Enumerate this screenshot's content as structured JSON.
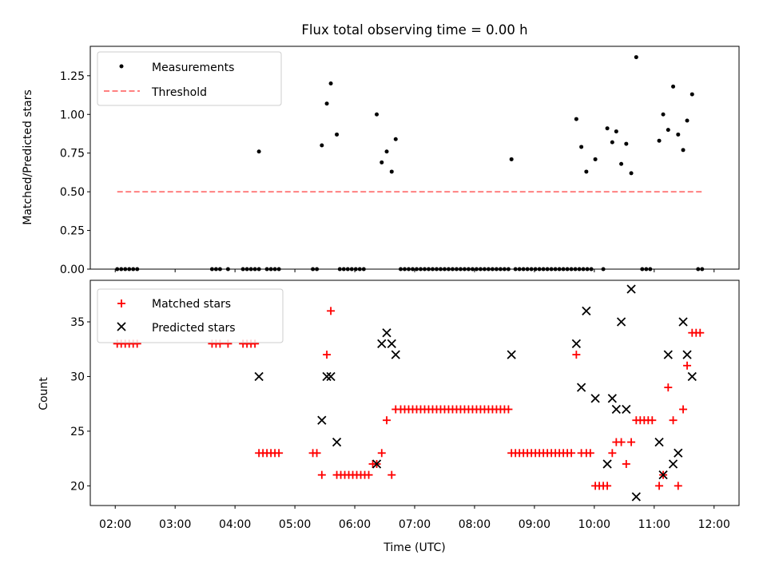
{
  "chart_data": [
    {
      "type": "scatter",
      "title": "Flux total observing time = 0.00 h",
      "ylabel": "Matched/Predicted stars",
      "xlim": [
        "01:35",
        "12:25"
      ],
      "ylim": [
        0,
        1.44
      ],
      "ytick_labels": [
        "0.00",
        "0.25",
        "0.50",
        "0.75",
        "1.00",
        "1.25"
      ],
      "yticks": [
        0,
        0.25,
        0.5,
        0.75,
        1.0,
        1.25
      ],
      "legend_position": "top-left",
      "grid": false,
      "series": [
        {
          "name": "Measurements",
          "marker": "dot",
          "color": "#000000",
          "points": [
            [
              "02:02",
              0
            ],
            [
              "02:06",
              0
            ],
            [
              "02:10",
              0
            ],
            [
              "02:14",
              0
            ],
            [
              "02:18",
              0
            ],
            [
              "02:22",
              0
            ],
            [
              "03:37",
              0
            ],
            [
              "03:41",
              0
            ],
            [
              "03:45",
              0
            ],
            [
              "03:53",
              0
            ],
            [
              "04:08",
              0
            ],
            [
              "04:12",
              0
            ],
            [
              "04:16",
              0
            ],
            [
              "04:20",
              0
            ],
            [
              "04:24",
              0
            ],
            [
              "04:32",
              0
            ],
            [
              "04:36",
              0
            ],
            [
              "04:40",
              0
            ],
            [
              "04:44",
              0
            ],
            [
              "05:18",
              0
            ],
            [
              "05:22",
              0
            ],
            [
              "05:45",
              0
            ],
            [
              "05:49",
              0
            ],
            [
              "05:53",
              0
            ],
            [
              "05:57",
              0
            ],
            [
              "06:01",
              0
            ],
            [
              "06:05",
              0
            ],
            [
              "06:09",
              0
            ],
            [
              "06:46",
              0
            ],
            [
              "06:50",
              0
            ],
            [
              "06:54",
              0
            ],
            [
              "06:58",
              0
            ],
            [
              "07:02",
              0
            ],
            [
              "07:06",
              0
            ],
            [
              "07:10",
              0
            ],
            [
              "07:14",
              0
            ],
            [
              "07:18",
              0
            ],
            [
              "07:22",
              0
            ],
            [
              "07:26",
              0
            ],
            [
              "07:30",
              0
            ],
            [
              "07:34",
              0
            ],
            [
              "07:38",
              0
            ],
            [
              "07:42",
              0
            ],
            [
              "07:46",
              0
            ],
            [
              "07:50",
              0
            ],
            [
              "07:54",
              0
            ],
            [
              "07:58",
              0
            ],
            [
              "08:02",
              0
            ],
            [
              "08:06",
              0
            ],
            [
              "08:10",
              0
            ],
            [
              "08:14",
              0
            ],
            [
              "08:18",
              0
            ],
            [
              "08:22",
              0
            ],
            [
              "08:26",
              0
            ],
            [
              "08:30",
              0
            ],
            [
              "08:34",
              0
            ],
            [
              "08:41",
              0
            ],
            [
              "08:45",
              0
            ],
            [
              "08:49",
              0
            ],
            [
              "08:53",
              0
            ],
            [
              "08:57",
              0
            ],
            [
              "09:01",
              0
            ],
            [
              "09:05",
              0
            ],
            [
              "09:09",
              0
            ],
            [
              "09:13",
              0
            ],
            [
              "09:17",
              0
            ],
            [
              "09:21",
              0
            ],
            [
              "09:25",
              0
            ],
            [
              "09:29",
              0
            ],
            [
              "09:33",
              0
            ],
            [
              "09:37",
              0
            ],
            [
              "09:41",
              0
            ],
            [
              "09:45",
              0
            ],
            [
              "09:49",
              0
            ],
            [
              "09:53",
              0
            ],
            [
              "09:57",
              0
            ],
            [
              "10:09",
              0
            ],
            [
              "10:48",
              0
            ],
            [
              "10:52",
              0
            ],
            [
              "10:56",
              0
            ],
            [
              "11:44",
              0
            ],
            [
              "11:48",
              0
            ],
            [
              "04:24",
              0.76
            ],
            [
              "05:27",
              0.8
            ],
            [
              "05:32",
              1.07
            ],
            [
              "05:36",
              1.2
            ],
            [
              "05:42",
              0.87
            ],
            [
              "06:22",
              1.0
            ],
            [
              "06:27",
              0.69
            ],
            [
              "06:32",
              0.76
            ],
            [
              "06:37",
              0.63
            ],
            [
              "06:41",
              0.84
            ],
            [
              "08:37",
              0.71
            ],
            [
              "09:42",
              0.97
            ],
            [
              "09:47",
              0.79
            ],
            [
              "09:52",
              0.63
            ],
            [
              "10:01",
              0.71
            ],
            [
              "10:13",
              0.91
            ],
            [
              "10:18",
              0.82
            ],
            [
              "10:22",
              0.89
            ],
            [
              "10:27",
              0.68
            ],
            [
              "10:32",
              0.81
            ],
            [
              "10:37",
              0.62
            ],
            [
              "10:42",
              1.37
            ],
            [
              "11:05",
              0.83
            ],
            [
              "11:09",
              1.0
            ],
            [
              "11:14",
              0.9
            ],
            [
              "11:19",
              1.18
            ],
            [
              "11:24",
              0.87
            ],
            [
              "11:29",
              0.77
            ],
            [
              "11:33",
              0.96
            ],
            [
              "11:38",
              1.13
            ]
          ]
        },
        {
          "name": "Threshold",
          "marker": "dashed-line",
          "color": "#ff8080",
          "points": [
            [
              "02:02",
              0.5
            ],
            [
              "11:50",
              0.5
            ]
          ]
        }
      ]
    },
    {
      "type": "scatter",
      "xlabel": "Time (UTC)",
      "ylabel": "Count",
      "xlim": [
        "01:35",
        "12:25"
      ],
      "ylim": [
        18.2,
        38.8
      ],
      "yticks": [
        20,
        25,
        30,
        35
      ],
      "ytick_labels": [
        "20",
        "25",
        "30",
        "35"
      ],
      "xticks": [
        "02:00",
        "03:00",
        "04:00",
        "05:00",
        "06:00",
        "07:00",
        "08:00",
        "09:00",
        "10:00",
        "11:00",
        "12:00"
      ],
      "legend_position": "top-left",
      "grid": false,
      "series": [
        {
          "name": "Matched stars",
          "marker": "plus",
          "color": "#ff0000",
          "points": [
            [
              "02:02",
              33
            ],
            [
              "02:06",
              33
            ],
            [
              "02:10",
              33
            ],
            [
              "02:14",
              33
            ],
            [
              "02:18",
              33
            ],
            [
              "02:22",
              33
            ],
            [
              "03:37",
              33
            ],
            [
              "03:41",
              33
            ],
            [
              "03:45",
              33
            ],
            [
              "03:53",
              33
            ],
            [
              "04:08",
              33
            ],
            [
              "04:12",
              33
            ],
            [
              "04:16",
              33
            ],
            [
              "04:20",
              33
            ],
            [
              "04:24",
              23
            ],
            [
              "04:28",
              23
            ],
            [
              "04:32",
              23
            ],
            [
              "04:36",
              23
            ],
            [
              "04:40",
              23
            ],
            [
              "04:44",
              23
            ],
            [
              "05:18",
              23
            ],
            [
              "05:22",
              23
            ],
            [
              "05:27",
              21
            ],
            [
              "05:32",
              32
            ],
            [
              "05:36",
              36
            ],
            [
              "05:42",
              21
            ],
            [
              "05:46",
              21
            ],
            [
              "05:50",
              21
            ],
            [
              "05:54",
              21
            ],
            [
              "05:58",
              21
            ],
            [
              "06:02",
              21
            ],
            [
              "06:06",
              21
            ],
            [
              "06:10",
              21
            ],
            [
              "06:14",
              21
            ],
            [
              "06:18",
              22
            ],
            [
              "06:22",
              22
            ],
            [
              "06:27",
              23
            ],
            [
              "06:32",
              26
            ],
            [
              "06:37",
              21
            ],
            [
              "06:41",
              27
            ],
            [
              "06:46",
              27
            ],
            [
              "06:50",
              27
            ],
            [
              "06:54",
              27
            ],
            [
              "06:58",
              27
            ],
            [
              "07:02",
              27
            ],
            [
              "07:06",
              27
            ],
            [
              "07:10",
              27
            ],
            [
              "07:14",
              27
            ],
            [
              "07:18",
              27
            ],
            [
              "07:22",
              27
            ],
            [
              "07:26",
              27
            ],
            [
              "07:30",
              27
            ],
            [
              "07:34",
              27
            ],
            [
              "07:38",
              27
            ],
            [
              "07:42",
              27
            ],
            [
              "07:46",
              27
            ],
            [
              "07:50",
              27
            ],
            [
              "07:54",
              27
            ],
            [
              "07:58",
              27
            ],
            [
              "08:02",
              27
            ],
            [
              "08:06",
              27
            ],
            [
              "08:10",
              27
            ],
            [
              "08:14",
              27
            ],
            [
              "08:18",
              27
            ],
            [
              "08:22",
              27
            ],
            [
              "08:26",
              27
            ],
            [
              "08:30",
              27
            ],
            [
              "08:34",
              27
            ],
            [
              "08:37",
              23
            ],
            [
              "08:41",
              23
            ],
            [
              "08:45",
              23
            ],
            [
              "08:49",
              23
            ],
            [
              "08:53",
              23
            ],
            [
              "08:57",
              23
            ],
            [
              "09:01",
              23
            ],
            [
              "09:05",
              23
            ],
            [
              "09:09",
              23
            ],
            [
              "09:13",
              23
            ],
            [
              "09:17",
              23
            ],
            [
              "09:21",
              23
            ],
            [
              "09:25",
              23
            ],
            [
              "09:29",
              23
            ],
            [
              "09:33",
              23
            ],
            [
              "09:37",
              23
            ],
            [
              "09:42",
              32
            ],
            [
              "09:47",
              23
            ],
            [
              "09:52",
              23
            ],
            [
              "09:56",
              23
            ],
            [
              "10:01",
              20
            ],
            [
              "10:05",
              20
            ],
            [
              "10:09",
              20
            ],
            [
              "10:13",
              20
            ],
            [
              "10:18",
              23
            ],
            [
              "10:22",
              24
            ],
            [
              "10:27",
              24
            ],
            [
              "10:32",
              22
            ],
            [
              "10:37",
              24
            ],
            [
              "10:42",
              26
            ],
            [
              "10:46",
              26
            ],
            [
              "10:50",
              26
            ],
            [
              "10:54",
              26
            ],
            [
              "10:58",
              26
            ],
            [
              "11:05",
              20
            ],
            [
              "11:09",
              21
            ],
            [
              "11:14",
              29
            ],
            [
              "11:19",
              26
            ],
            [
              "11:24",
              20
            ],
            [
              "11:29",
              27
            ],
            [
              "11:33",
              31
            ],
            [
              "11:38",
              34
            ],
            [
              "11:42",
              34
            ],
            [
              "11:46",
              34
            ]
          ]
        },
        {
          "name": "Predicted stars",
          "marker": "x",
          "color": "#000000",
          "points": [
            [
              "04:24",
              30
            ],
            [
              "05:27",
              26
            ],
            [
              "05:32",
              30
            ],
            [
              "05:36",
              30
            ],
            [
              "05:42",
              24
            ],
            [
              "06:22",
              22
            ],
            [
              "06:27",
              33
            ],
            [
              "06:32",
              34
            ],
            [
              "06:37",
              33
            ],
            [
              "06:41",
              32
            ],
            [
              "08:37",
              32
            ],
            [
              "09:42",
              33
            ],
            [
              "09:47",
              29
            ],
            [
              "09:52",
              36
            ],
            [
              "10:01",
              28
            ],
            [
              "10:13",
              22
            ],
            [
              "10:18",
              28
            ],
            [
              "10:22",
              27
            ],
            [
              "10:27",
              35
            ],
            [
              "10:32",
              27
            ],
            [
              "10:37",
              38
            ],
            [
              "10:42",
              19
            ],
            [
              "11:05",
              24
            ],
            [
              "11:09",
              21
            ],
            [
              "11:14",
              32
            ],
            [
              "11:19",
              22
            ],
            [
              "11:24",
              23
            ],
            [
              "11:29",
              35
            ],
            [
              "11:33",
              32
            ],
            [
              "11:38",
              30
            ]
          ]
        }
      ]
    }
  ]
}
